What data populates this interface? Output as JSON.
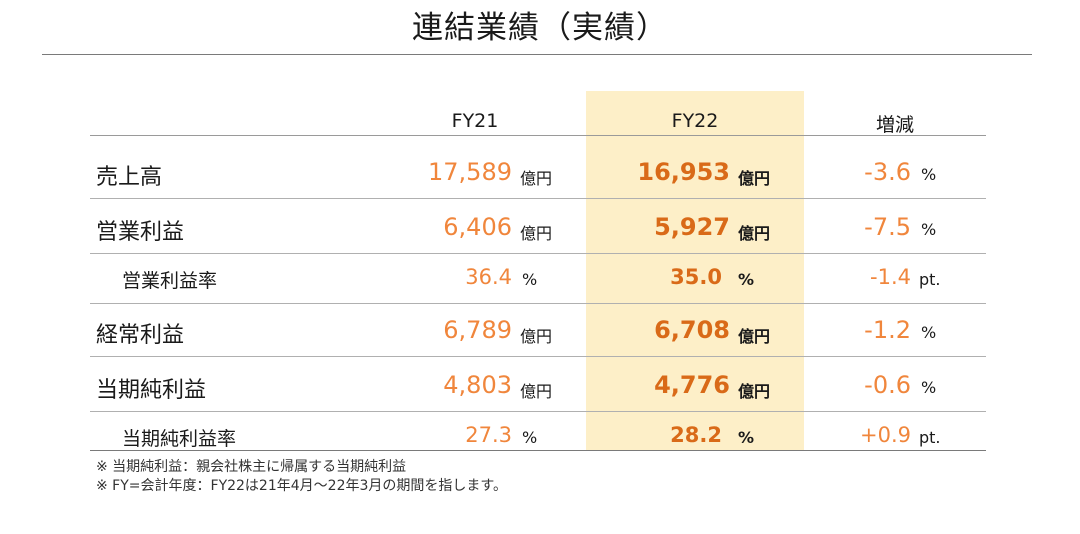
{
  "title": "連結業績（実績）",
  "columns": {
    "fy21": "FY21",
    "fy22": "FY22",
    "change": "増減"
  },
  "rows": [
    {
      "label": "売上高",
      "fy21": "17,589",
      "fy21_unit": "億円",
      "fy22": "16,953",
      "fy22_unit": "億円",
      "change": "-3.6",
      "change_unit": "%"
    },
    {
      "label": "営業利益",
      "fy21": "6,406",
      "fy21_unit": "億円",
      "fy22": "5,927",
      "fy22_unit": "億円",
      "change": "-7.5",
      "change_unit": "%"
    },
    {
      "label": "営業利益率",
      "fy21": "36.4",
      "fy21_unit": "%",
      "fy22": "35.0",
      "fy22_unit": "%",
      "change": "-1.4",
      "change_unit": "pt."
    },
    {
      "label": "経常利益",
      "fy21": "6,789",
      "fy21_unit": "億円",
      "fy22": "6,708",
      "fy22_unit": "億円",
      "change": "-1.2",
      "change_unit": "%"
    },
    {
      "label": "当期純利益",
      "fy21": "4,803",
      "fy21_unit": "億円",
      "fy22": "4,776",
      "fy22_unit": "億円",
      "change": "-0.6",
      "change_unit": "%"
    },
    {
      "label": "当期純利益率",
      "fy21": "27.3",
      "fy21_unit": "%",
      "fy22": "28.2",
      "fy22_unit": "%",
      "change": "+0.9",
      "change_unit": "pt."
    }
  ],
  "notes": [
    "※ 当期純利益：親会社株主に帰属する当期純利益",
    "※ FY=会計年度：FY22は21年4月～22年3月の期間を指します。"
  ],
  "colors": {
    "highlight": "#fdefc8",
    "fy21_value": "#f0863c",
    "fy22_value": "#d96a18",
    "change_value": "#f0863c"
  }
}
